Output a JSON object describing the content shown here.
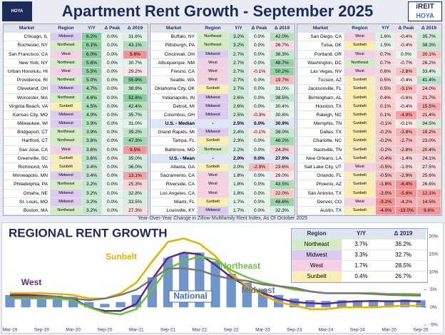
{
  "header": {
    "title": "Apartment Rent Growth - September 2025",
    "logo_left": "HOYA CAPITAL",
    "logo_right_top": "iREIT",
    "logo_right_bottom": "HOYA"
  },
  "region_colors": {
    "Midwest": "#dccbee",
    "Northeast": "#d4ecc4",
    "West": "#f6d0e2",
    "Sunbelt": "#fbeeb2"
  },
  "tables": [
    {
      "columns": [
        "Market",
        "Region",
        "Y/Y",
        "Δ Peak",
        "Δ 2019"
      ],
      "rows": [
        [
          "Chicago, IL",
          "Midwest",
          "6.2%",
          "0.0%",
          "31.6%"
        ],
        [
          "Rochester, NY",
          "Northeast",
          "6.1%",
          "0.0%",
          "43.1%"
        ],
        [
          "San Francisco, CA",
          "West",
          "6.0%",
          "0.0%",
          "5.6%"
        ],
        [
          "New York, NY",
          "Northeast",
          "5.6%",
          "0.0%",
          "30.7%"
        ],
        [
          "Urban Honolulu, HI",
          "West",
          "5.5%",
          "0.0%",
          "29.2%"
        ],
        [
          "Providence, RI",
          "Northeast",
          "5.0%",
          "0.0%",
          "55.9%"
        ],
        [
          "Cleveland, OH",
          "Midwest",
          "4.7%",
          "0.0%",
          "38.9%"
        ],
        [
          "Worcester, MA",
          "Northeast",
          "4.6%",
          "0.0%",
          "52.6%"
        ],
        [
          "Virginia Beach, VA",
          "Sunbelt",
          "4.5%",
          "0.0%",
          "42.4%"
        ],
        [
          "Kansas City, MO",
          "Midwest",
          "4.0%",
          "0.0%",
          "35.7%"
        ],
        [
          "Milwaukee, WI",
          "Midwest",
          "3.9%",
          "0.0%",
          "31.0%"
        ],
        [
          "Bridgeport, CT",
          "Northeast",
          "3.9%",
          "0.0%",
          "39.2%"
        ],
        [
          "Hartford, CT",
          "Northeast",
          "3.8%",
          "0.0%",
          "47.3%"
        ],
        [
          "San Jose, CA",
          "West",
          "3.6%",
          "0.0%",
          "9.5%"
        ],
        [
          "Greenville, SC",
          "Sunbelt",
          "3.6%",
          "0.0%",
          "35.0%"
        ],
        [
          "Richmond, VA",
          "Sunbelt",
          "3.4%",
          "0.0%",
          "36.0%"
        ],
        [
          "Minneapolis, MN",
          "Midwest",
          "3.4%",
          "0.0%",
          "13.1%"
        ],
        [
          "Philadelphia, PA",
          "Northeast",
          "3.2%",
          "0.0%",
          "25.3%"
        ],
        [
          "Omaha, NE",
          "Midwest",
          "3.2%",
          "0.0%",
          "32.8%"
        ],
        [
          "St. Louis, MO",
          "Midwest",
          "3.2%",
          "0.0%",
          "33.5%"
        ],
        [
          "Boston, MA",
          "Northeast",
          "3.2%",
          "0.0%",
          "27.3%"
        ]
      ]
    },
    {
      "columns": [
        "Market",
        "Region",
        "Y/Y",
        "Δ Peak",
        "Δ 2019"
      ],
      "bold_rows": [
        10,
        14
      ],
      "rows": [
        [
          "Buffalo, NY",
          "Northeast",
          "3.2%",
          "0.0%",
          "42.0%"
        ],
        [
          "Pittsburgh, PA",
          "Northeast",
          "3.2%",
          "0.0%",
          "26.7%"
        ],
        [
          "Cincinnati, OH",
          "Midwest",
          "2.7%",
          "0.0%",
          "38.3%"
        ],
        [
          "Albuquerque, NM",
          "West",
          "2.7%",
          "0.0%",
          "48.7%"
        ],
        [
          "Fresno, CA",
          "West",
          "2.7%",
          "-0.1%",
          "50.2%"
        ],
        [
          "Seattle, WA",
          "West",
          "2.7%",
          "0.0%",
          "19.7%"
        ],
        [
          "Oklahoma City, OK",
          "Sunbelt",
          "2.7%",
          "0.0%",
          "31.0%"
        ],
        [
          "Indianapolis, IN",
          "Midwest",
          "2.6%",
          "0.0%",
          "38.5%"
        ],
        [
          "Detroit, MI",
          "Midwest",
          "2.6%",
          "0.0%",
          "30.4%"
        ],
        [
          "Columbus, OH",
          "Midwest",
          "2.5%",
          "-0.3%",
          "30.8%"
        ],
        [
          "U.S. - Median",
          "-",
          "2.5%",
          "0.0%",
          "30.9%"
        ],
        [
          "Grand Rapids, MI",
          "Midwest",
          "2.4%",
          "-0.1%",
          "38.0%"
        ],
        [
          "Tampa, FL",
          "Sunbelt",
          "2.3%",
          "0.0%",
          "46.2%"
        ],
        [
          "Baltimore, MD",
          "Northeast",
          "2.2%",
          "0.0%",
          "24.3%"
        ],
        [
          "U.S. - Mean",
          "-",
          "2.0%",
          "0.0%",
          "27.9%"
        ],
        [
          "Atlanta, GA",
          "Sunbelt",
          "2.0%",
          "-2.9%",
          "23.6%"
        ],
        [
          "Sacramento, CA",
          "West",
          "1.8%",
          "0.0%",
          "29.0%"
        ],
        [
          "Riverside, CA",
          "West",
          "1.8%",
          "0.0%",
          "43.5%"
        ],
        [
          "Los Angeles, CA",
          "West",
          "1.8%",
          "0.0%",
          "22.0%"
        ],
        [
          "Miami, FL",
          "Sunbelt",
          "1.7%",
          "0.0%",
          "48.6%"
        ],
        [
          "Louisville, KY",
          "Midwest",
          "1.7%",
          "0.0%",
          "32.3%"
        ]
      ]
    },
    {
      "columns": [
        "Market",
        "Region",
        "Y/Y",
        "Δ Peak",
        "Δ 2019"
      ],
      "rows": [
        [
          "San Diego, CA",
          "West",
          "1.6%",
          "-0.4%",
          "35.7%"
        ],
        [
          "Tulsa, OK",
          "Sunbelt",
          "1.5%",
          "-0.4%",
          "38.3%"
        ],
        [
          "Portland, OR",
          "West",
          "0.7%",
          "0.0%",
          "20.1%"
        ],
        [
          "Washington, DC",
          "Northeast",
          "0.7%",
          "-0.7%",
          "26.2%"
        ],
        [
          "Las Vegas, NV",
          "West",
          "0.6%",
          "-2.8%",
          "33.4%"
        ],
        [
          "Tucson, AZ",
          "Sunbelt",
          "0.5%",
          "-0.4%",
          "41.4%"
        ],
        [
          "Jacksonville, FL",
          "Sunbelt",
          "0.5%",
          "-3.1%",
          "24.0%"
        ],
        [
          "Birmingham, AL",
          "Sunbelt",
          "0.4%",
          "-0.6%",
          "21.7%"
        ],
        [
          "Houston, TX",
          "Sunbelt",
          "0.1%",
          "-0.4%",
          "15.5%"
        ],
        [
          "Raleigh, NC",
          "Sunbelt",
          "0.1%",
          "-4.9%",
          "21.4%"
        ],
        [
          "Memphis, TN",
          "Sunbelt",
          "-0.1%",
          "-0.1%",
          "34.5%"
        ],
        [
          "Dallas, TX",
          "Sunbelt",
          "-0.2%",
          "-3.8%",
          "19.2%"
        ],
        [
          "Charlotte, NC",
          "Sunbelt",
          "-0.2%",
          "-2.7%",
          "23.0%"
        ],
        [
          "Nashville, TN",
          "Sunbelt",
          "-0.2%",
          "-2.8%",
          "20.4%"
        ],
        [
          "New Orleans, LA",
          "Sunbelt",
          "-0.4%",
          "-1.4%",
          "24.1%"
        ],
        [
          "Salt Lake City, UT",
          "West",
          "-0.5%",
          "-1.0%",
          "27.5%"
        ],
        [
          "Orlando, FL",
          "Sunbelt",
          "-0.5%",
          "-2.9%",
          "25.6%"
        ],
        [
          "Phoenix, AZ",
          "Sunbelt",
          "-1.8%",
          "-6.4%",
          "26.6%"
        ],
        [
          "San Antonio, TX",
          "Sunbelt",
          "-2.0%",
          "-5.8%",
          "12.1%"
        ],
        [
          "Denver, CO",
          "West",
          "-3.2%",
          "-4.2%",
          "14.5%"
        ],
        [
          "Austin, TX",
          "Sunbelt",
          "-4.0%",
          "-13.0%",
          "9.6%"
        ]
      ]
    }
  ],
  "caption": "Year-Over-Year Change in Zillow Multifamily Rent Index, As Of October 2025",
  "regional_table": {
    "columns": [
      "Region",
      "Y/Y",
      "Δ 2019"
    ],
    "rows": [
      [
        "Northeast",
        "3.7%",
        "36.2%"
      ],
      [
        "Midwest",
        "3.3%",
        "32.7%"
      ],
      [
        "West",
        "1.7%",
        "28.5%"
      ],
      [
        "Sunbelt",
        "0.4%",
        "26.7%"
      ]
    ]
  },
  "chart_data": {
    "type": "combo",
    "title": "REGIONAL RENT GROWTH",
    "categories": [
      "Mar-19",
      null,
      "Sep-19",
      null,
      "Mar-20",
      null,
      "Sep-20",
      null,
      "Mar-21",
      null,
      "Sep-21",
      null,
      "Mar-22",
      null,
      "Sep-22",
      null,
      "Mar-23",
      null,
      "Sep-23",
      null,
      "Mar-24",
      null,
      "Sep-24",
      null,
      "Mar-25",
      null,
      "Sep-25"
    ],
    "ylim": [
      -5,
      20
    ],
    "yticks": [
      {
        "value": -5,
        "label": "-5%"
      },
      {
        "value": 0,
        "label": "0%"
      },
      {
        "value": 5,
        "label": "5%"
      },
      {
        "value": 10,
        "label": "10%"
      },
      {
        "value": 15,
        "label": "15%"
      },
      {
        "value": 20,
        "label": "20%"
      }
    ],
    "y_axis_side": "right",
    "series": [
      {
        "name": "National",
        "type": "bar",
        "color": "#3f72b8",
        "values": [
          3.5,
          3.5,
          3.5,
          3.3,
          3.0,
          1.5,
          1.0,
          1.5,
          3.5,
          8.5,
          14,
          15.5,
          15.5,
          13,
          9.5,
          7,
          5,
          3.5,
          2.5,
          2,
          1.8,
          2,
          2,
          2,
          2,
          2.2,
          2.0
        ]
      },
      {
        "name": "West",
        "type": "line",
        "color": "#5b2a86",
        "values": [
          3.5,
          3.5,
          3.3,
          3,
          2.5,
          0,
          -1,
          -1,
          1,
          8,
          14,
          15.5,
          15,
          12,
          8.5,
          6,
          4,
          2.5,
          1.5,
          1.2,
          1,
          1.5,
          1.7,
          1.8,
          1.7,
          1.8,
          1.7
        ]
      },
      {
        "name": "Sunbelt",
        "type": "line",
        "color": "#e6b000",
        "values": [
          4,
          4,
          4,
          3.8,
          3.5,
          2.5,
          2.5,
          4,
          7,
          13,
          18.5,
          19.5,
          18,
          14.5,
          9.5,
          6,
          3.5,
          1.5,
          0.5,
          -0.5,
          -0.5,
          0,
          0,
          0,
          0.3,
          0.5,
          0.4
        ]
      },
      {
        "name": "Northeast",
        "type": "line",
        "color": "#6cbf3a",
        "values": [
          2.5,
          2.5,
          2.5,
          2.5,
          2,
          0,
          -1.5,
          -2,
          -0.5,
          5,
          11,
          13,
          14.5,
          13.5,
          10.5,
          8.5,
          7,
          6,
          5,
          4.5,
          4,
          4,
          4,
          4,
          3.8,
          3.8,
          3.7
        ]
      },
      {
        "name": "Midwest",
        "type": "line",
        "color": "#777777",
        "values": [
          3,
          3,
          3,
          3,
          2.5,
          2,
          2.5,
          3.5,
          5,
          8,
          11,
          11,
          10.5,
          9,
          8,
          7.5,
          6.5,
          6,
          5.5,
          4.5,
          4,
          4,
          4,
          3.8,
          3.5,
          3.4,
          3.3
        ]
      }
    ]
  }
}
